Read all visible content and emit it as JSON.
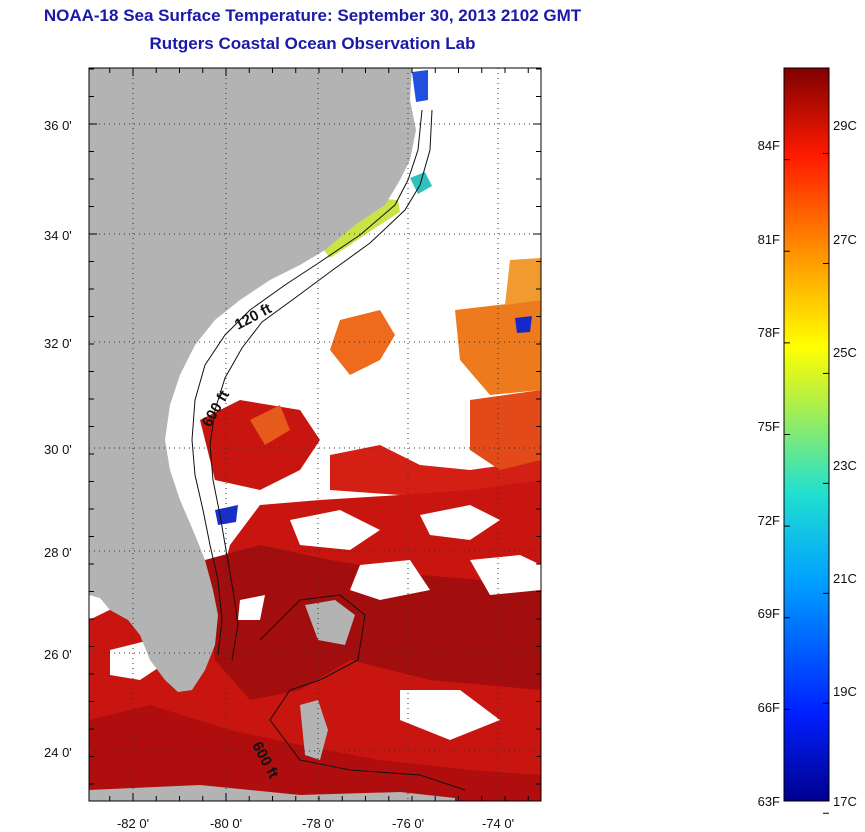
{
  "header": {
    "title": "NOAA-18 Sea Surface Temperature:  September 30, 2013 2102 GMT",
    "subtitle": "Rutgers Coastal Ocean Observation Lab"
  },
  "map": {
    "lat_ticks": [
      "36 0'",
      "34 0'",
      "32 0'",
      "30 0'",
      "28 0'",
      "26 0'",
      "24 0'"
    ],
    "lon_ticks": [
      "-82 0'",
      "-80 0'",
      "-78 0'",
      "-76 0'",
      "-74 0'"
    ],
    "depth_labels": [
      "120 ft",
      "600 ft",
      "600 ft"
    ],
    "colors": {
      "land": "#b3b3b3",
      "water_nodata": "#ffffff",
      "warm_core": "#a50f0f",
      "warm": "#d61c10",
      "orange": "#f0781a",
      "yellow": "#d4e43a",
      "cool": "#1a2fd6"
    }
  },
  "colorbar": {
    "fahrenheit_labels": [
      "84F",
      "81F",
      "78F",
      "75F",
      "72F",
      "69F",
      "66F",
      "63F"
    ],
    "celsius_labels": [
      "29C",
      "27C",
      "25C",
      "23C",
      "21C",
      "19C",
      "17C"
    ],
    "min_f": 63,
    "max_f": 87
  }
}
